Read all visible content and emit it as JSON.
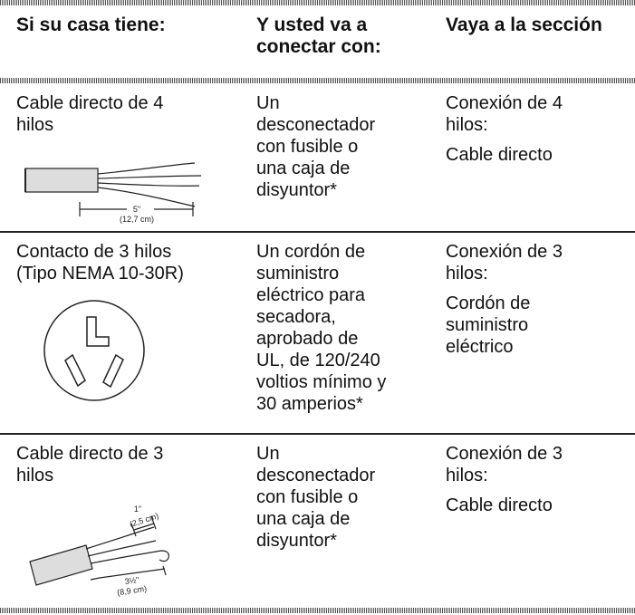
{
  "header": [
    [
      "Si su casa tiene:"
    ],
    [
      "Y usted va a",
      "conectar con:"
    ],
    [
      "Vaya a la sección"
    ]
  ],
  "rows": [
    {
      "house": [
        "Cable directo de 4",
        "hilos"
      ],
      "connect": [
        "Un",
        "desconectador",
        "con fusible o",
        "una caja de",
        "disyuntor*"
      ],
      "section": [
        [
          "Conexión de 4",
          "hilos:"
        ],
        [
          "Cable directo"
        ]
      ],
      "figure_labels": [
        "5\"",
        "(12,7 cm)"
      ]
    },
    {
      "house": [
        "Contacto de 3 hilos",
        "(Tipo NEMA 10-30R)"
      ],
      "connect": [
        "Un cordón de",
        "suministro",
        "eléctrico para",
        "secadora,",
        "aprobado de",
        "UL, de 120/240",
        "voltios mínimo y",
        "30 amperios*"
      ],
      "section": [
        [
          "Conexión de 3",
          "hilos:"
        ],
        [
          "Cordón de",
          "suministro",
          "eléctrico"
        ]
      ],
      "figure_labels": []
    },
    {
      "house": [
        "Cable directo de 3",
        "hilos"
      ],
      "connect": [
        "Un",
        "desconectador",
        "con fusible o",
        "una caja de",
        "disyuntor*"
      ],
      "section": [
        [
          "Conexión de 3",
          "hilos:"
        ],
        [
          "Cable directo"
        ]
      ],
      "figure_labels": [
        "1\"",
        "(2,5 cm)",
        "3½\"",
        "(8,9 cm)"
      ]
    }
  ]
}
